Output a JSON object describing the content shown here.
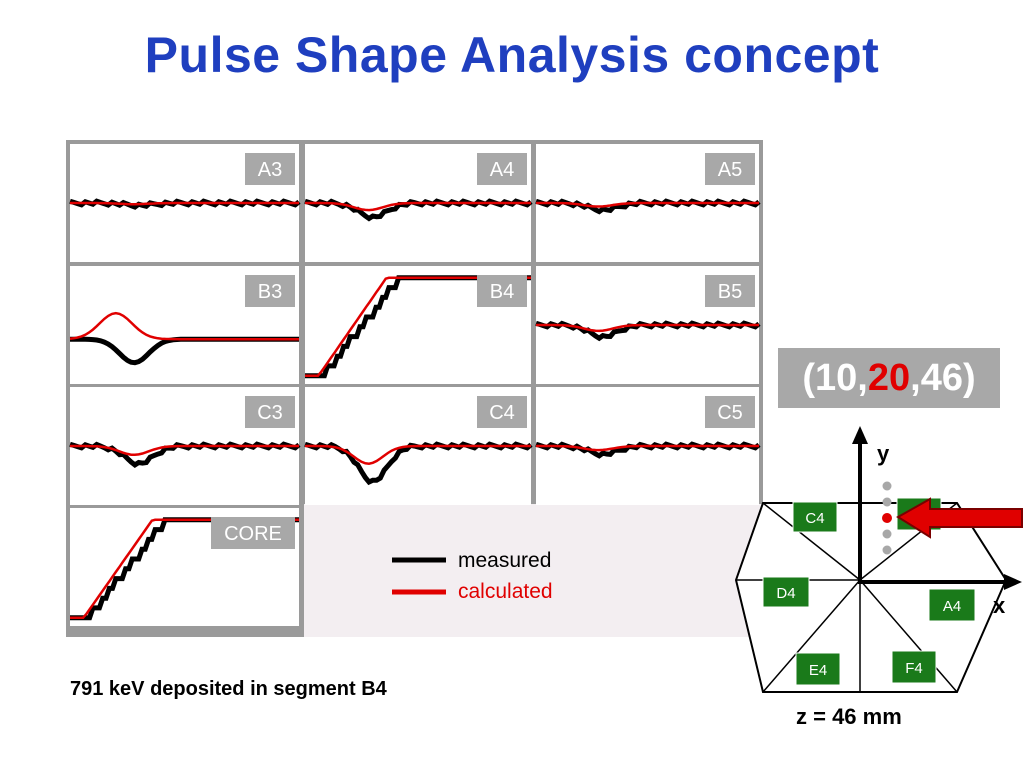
{
  "title": "Pulse Shape Analysis concept",
  "caption": "791 keV deposited in segment B4",
  "coordinate": {
    "open": "(10,",
    "highlight": "20",
    "close": ",46)"
  },
  "z_label": "z = 46 mm",
  "legend": [
    {
      "label": "measured",
      "color": "#000000"
    },
    {
      "label": "calculated",
      "color": "#e00000"
    }
  ],
  "panels": [
    {
      "label": "A3",
      "kind": "flat",
      "dip": 0.02
    },
    {
      "label": "A4",
      "kind": "flat",
      "dip": 0.12
    },
    {
      "label": "A5",
      "kind": "flat",
      "dip": 0.06
    },
    {
      "label": "B3",
      "kind": "b3"
    },
    {
      "label": "B4",
      "kind": "step"
    },
    {
      "label": "B5",
      "kind": "flat",
      "dip": 0.1
    },
    {
      "label": "C3",
      "kind": "flat",
      "dip": 0.15
    },
    {
      "label": "C4",
      "kind": "flat",
      "dip": 0.3
    },
    {
      "label": "C5",
      "kind": "flat",
      "dip": 0.07
    },
    {
      "label": "CORE",
      "kind": "step"
    }
  ],
  "hexagon": {
    "axis_x": "x",
    "axis_y": "y",
    "segments": [
      "C4",
      "B4",
      "D4",
      "A4",
      "E4",
      "F4"
    ]
  },
  "colors": {
    "title": "#1f3fbf",
    "highlight": "#e00000",
    "segment": "#1a7a1a",
    "arrow": "#e00000"
  }
}
